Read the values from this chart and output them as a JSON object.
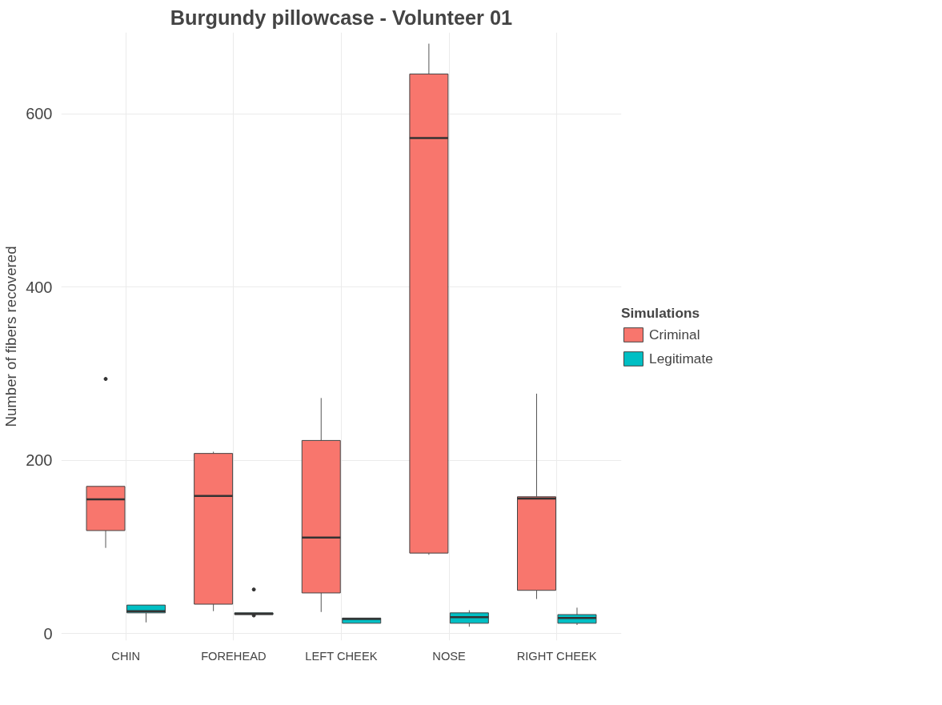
{
  "chart_data": {
    "type": "box",
    "title": "Burgundy pillowcase - Volunteer 01",
    "ylabel": "Number of fibers recovered",
    "legend_title": "Simulations",
    "legend": "right",
    "grid": true,
    "categories": [
      "CHIN",
      "FOREHEAD",
      "LEFT CHEEK",
      "NOSE",
      "RIGHT CHEEK"
    ],
    "ylim": [
      -8,
      694
    ],
    "yticks": [
      0,
      200,
      400,
      600
    ],
    "series": [
      {
        "name": "Criminal",
        "color": "#f8766d",
        "boxes": [
          {
            "low": 99,
            "q1": 119,
            "median": 155,
            "q3": 170,
            "high": 170,
            "outliers": [
              294
            ]
          },
          {
            "low": 26,
            "q1": 34,
            "median": 159,
            "q3": 208,
            "high": 210
          },
          {
            "low": 25,
            "q1": 47,
            "median": 111,
            "q3": 223,
            "high": 272
          },
          {
            "low": 91,
            "q1": 93,
            "median": 572,
            "q3": 646,
            "high": 681
          },
          {
            "low": 40,
            "q1": 50,
            "median": 156,
            "q3": 158,
            "high": 277
          }
        ]
      },
      {
        "name": "Legitimate",
        "color": "#00bfc4",
        "boxes": [
          {
            "low": 13,
            "q1": 24,
            "median": 26,
            "q3": 33,
            "high": 33
          },
          {
            "low": 22,
            "q1": 22,
            "median": 23,
            "q3": 24,
            "high": 24,
            "outliers": [
              51,
              21
            ]
          },
          {
            "low": 12,
            "q1": 12,
            "median": 17,
            "q3": 18,
            "high": 18
          },
          {
            "low": 8,
            "q1": 12,
            "median": 19,
            "q3": 24,
            "high": 27
          },
          {
            "low": 10,
            "q1": 12,
            "median": 18,
            "q3": 22,
            "high": 30
          }
        ]
      }
    ]
  }
}
